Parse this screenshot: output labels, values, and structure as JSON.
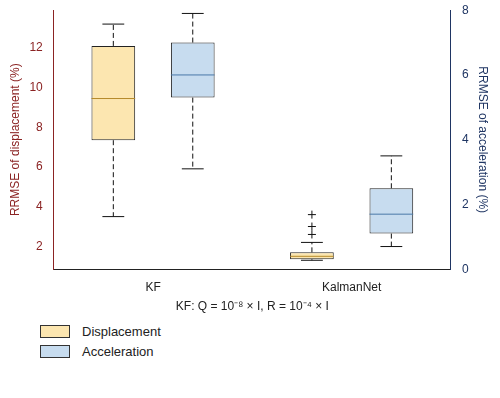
{
  "chart_data": {
    "type": "box",
    "categories": [
      "KF",
      "KalmanNet"
    ],
    "xlabel": "KF: Q = 10⁻⁸ × I, R = 10⁻⁴ × I",
    "ylabel": "RRMSE of displacement (%)",
    "y2label": "RRMSE of acceleration (%)",
    "ylim": [
      0.85,
      13.9
    ],
    "yticks": [
      2,
      4,
      6,
      8,
      10,
      12
    ],
    "y2lim": [
      0,
      8
    ],
    "y2ticks": [
      0,
      2,
      4,
      6,
      8
    ],
    "grid": false,
    "legend": "bottom-left",
    "series": [
      {
        "name": "Displacement",
        "color": "#fce6b0",
        "values": [
          {
            "min": 3.5,
            "q1": 7.35,
            "median": 9.45,
            "q3": 12.1,
            "max": 13.2,
            "outliers": []
          },
          {
            "min": 1.3,
            "q1": 1.35,
            "median": 1.5,
            "q3": 1.7,
            "max": 2.2,
            "outliers": [
              2.6,
              3.0,
              3.6
            ]
          }
        ]
      },
      {
        "name": "Acceleration",
        "color": "#c7dcef",
        "axis": "y2",
        "values": [
          {
            "min": 3.1,
            "q1": 5.3,
            "median": 6.0,
            "q3": 7.0,
            "max": 7.9,
            "outliers": []
          },
          {
            "min": 0.7,
            "q1": 1.1,
            "median": 1.7,
            "q3": 2.5,
            "max": 3.5,
            "outliers": []
          }
        ]
      }
    ]
  }
}
